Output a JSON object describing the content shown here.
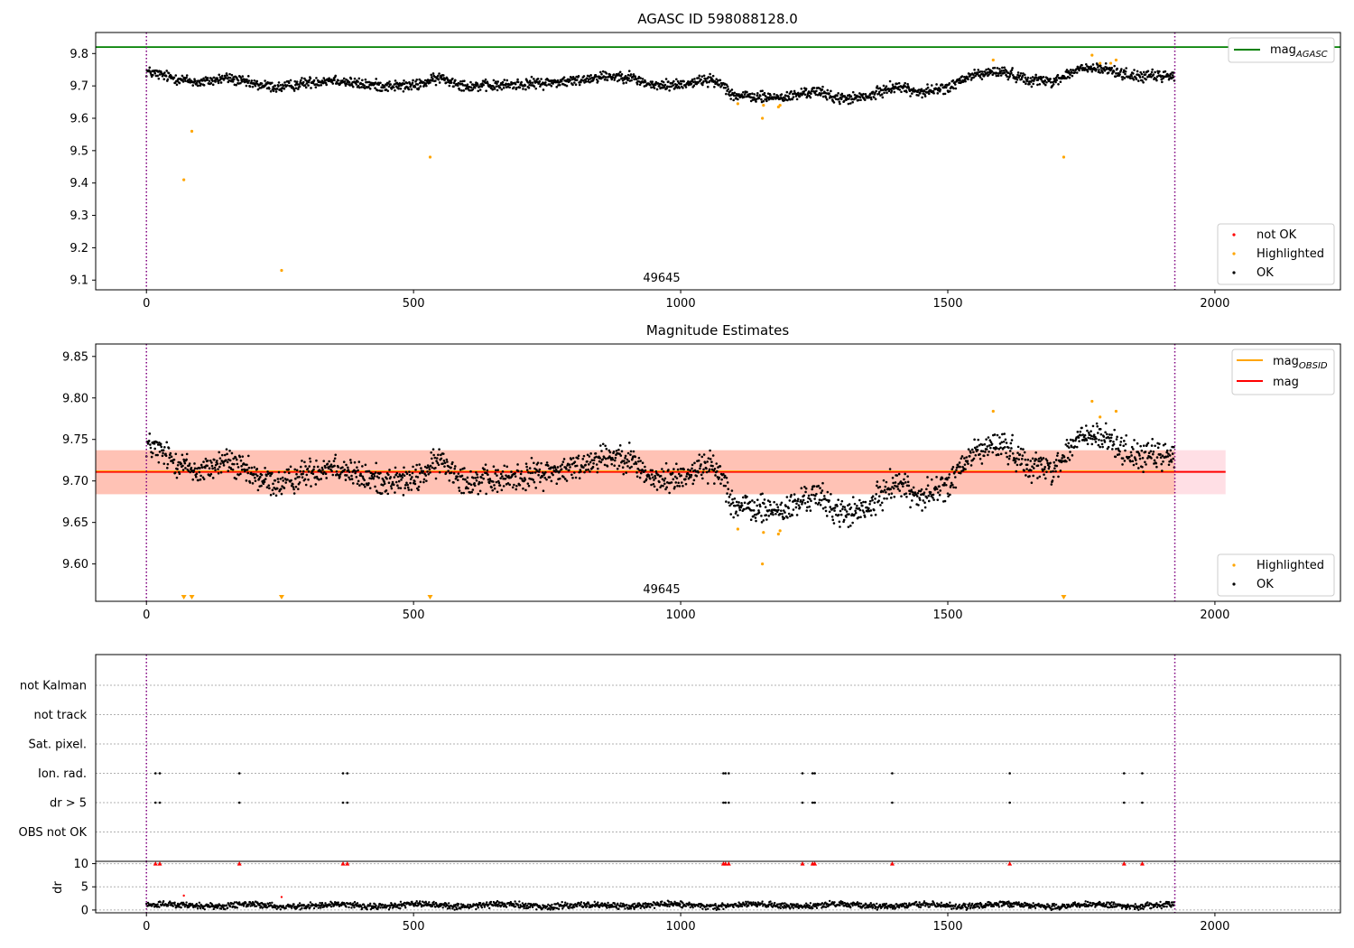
{
  "chart_data": [
    {
      "type": "scatter",
      "title": "AGASC ID 598088128.0",
      "xlabel": "",
      "ylabel": "",
      "xlim": [
        -95,
        2235
      ],
      "ylim": [
        9.07,
        9.865
      ],
      "x_ticks": [
        0,
        500,
        1000,
        1500,
        2000
      ],
      "y_ticks": [
        9.1,
        9.2,
        9.3,
        9.4,
        9.5,
        9.6,
        9.7,
        9.8
      ],
      "y_tick_labels": [
        "9.1",
        "9.2",
        "9.3",
        "9.4",
        "9.5",
        "9.6",
        "9.7",
        "9.8"
      ],
      "x_tick_labels": [
        "0",
        "500",
        "1000",
        "1500",
        "2000"
      ],
      "annotation": "49645",
      "annotation_x": 960,
      "vlines": [
        0,
        1925
      ],
      "hlines": [
        {
          "name": "mag_AGASC",
          "value": 9.82,
          "color": "#008000"
        }
      ],
      "legend_top": {
        "name": "mag",
        "sub": "AGASC",
        "color": "#008000"
      },
      "legend_bottom": [
        {
          "name": "not OK",
          "color": "#ff0000"
        },
        {
          "name": "Highlighted",
          "color": "#ffa500"
        },
        {
          "name": "OK",
          "color": "#000000"
        }
      ],
      "ok_trend": {
        "x": [
          0,
          50,
          100,
          150,
          200,
          250,
          300,
          350,
          400,
          450,
          500,
          550,
          600,
          650,
          700,
          750,
          800,
          850,
          900,
          950,
          1000,
          1050,
          1080,
          1100,
          1150,
          1200,
          1250,
          1300,
          1350,
          1400,
          1450,
          1500,
          1550,
          1600,
          1650,
          1700,
          1750,
          1800,
          1850,
          1900,
          1925
        ],
        "y": [
          9.745,
          9.725,
          9.71,
          9.725,
          9.705,
          9.695,
          9.71,
          9.72,
          9.705,
          9.7,
          9.7,
          9.725,
          9.7,
          9.7,
          9.705,
          9.71,
          9.715,
          9.73,
          9.73,
          9.7,
          9.705,
          9.72,
          9.705,
          9.67,
          9.665,
          9.665,
          9.685,
          9.66,
          9.665,
          9.7,
          9.68,
          9.695,
          9.735,
          9.745,
          9.72,
          9.715,
          9.755,
          9.75,
          9.73,
          9.73,
          9.73
        ]
      },
      "ok_noise": 0.012,
      "n_ok": 1925,
      "highlighted": {
        "x": [
          70,
          85,
          253,
          531,
          1107,
          1153,
          1155,
          1183,
          1186,
          1585,
          1717,
          1770,
          1785,
          1805,
          1815
        ],
        "y": [
          9.41,
          9.56,
          9.13,
          9.48,
          9.645,
          9.6,
          9.64,
          9.635,
          9.64,
          9.78,
          9.48,
          9.795,
          9.77,
          9.77,
          9.78
        ]
      }
    },
    {
      "type": "scatter",
      "title": "Magnitude Estimates",
      "xlabel": "",
      "ylabel": "",
      "xlim": [
        -95,
        2235
      ],
      "ylim": [
        9.555,
        9.865
      ],
      "x_ticks": [
        0,
        500,
        1000,
        1500,
        2000
      ],
      "y_ticks": [
        9.6,
        9.65,
        9.7,
        9.75,
        9.8,
        9.85
      ],
      "y_tick_labels": [
        "9.60",
        "9.65",
        "9.70",
        "9.75",
        "9.80",
        "9.85"
      ],
      "x_tick_labels": [
        "0",
        "500",
        "1000",
        "1500",
        "2000"
      ],
      "annotation": "49645",
      "annotation_x": 960,
      "vlines": [
        0,
        1925
      ],
      "mag": 9.711,
      "band_outer": {
        "x": [
          -95,
          2020
        ],
        "y": [
          9.684,
          9.737
        ],
        "color": "#ffc0cb"
      },
      "band_inner": {
        "x": [
          -95,
          1925
        ],
        "y": [
          9.684,
          9.737
        ],
        "color": "#ffa07a"
      },
      "legend_top": [
        {
          "name": "mag",
          "sub": "OBSID",
          "color": "#ffa500"
        },
        {
          "name": "mag",
          "sub": "",
          "color": "#ff0000"
        }
      ],
      "legend_bottom": [
        {
          "name": "Highlighted",
          "color": "#ffa500"
        },
        {
          "name": "OK",
          "color": "#000000"
        }
      ],
      "highlighted": {
        "x": [
          1107,
          1153,
          1155,
          1183,
          1186,
          1585,
          1770,
          1785,
          1815
        ],
        "y": [
          9.642,
          9.6,
          9.638,
          9.636,
          9.64,
          9.784,
          9.796,
          9.777,
          9.784
        ]
      },
      "offscale_markers_x": [
        70,
        85,
        253,
        531,
        1717
      ]
    },
    {
      "type": "scatter",
      "title": "",
      "xlabel": "",
      "ylabel": "",
      "xlim": [
        -95,
        2235
      ],
      "x_ticks": [
        0,
        500,
        1000,
        1500,
        2000
      ],
      "x_tick_labels": [
        "0",
        "500",
        "1000",
        "1500",
        "2000"
      ],
      "vlines": [
        0,
        1925
      ],
      "flag_rows": [
        "not Kalman",
        "not track",
        "Sat. pixel.",
        "Ion. rad.",
        "dr > 5",
        "OBS not OK"
      ],
      "flag_points": {
        "Ion. rad.": [
          17,
          25,
          174,
          368,
          376,
          1080,
          1084,
          1090,
          1228,
          1247,
          1251,
          1396,
          1616,
          1830,
          1864
        ],
        "dr > 5": [
          17,
          25,
          174,
          368,
          376,
          1080,
          1084,
          1090,
          1228,
          1247,
          1251,
          1396,
          1616,
          1830,
          1864
        ]
      }
    },
    {
      "type": "scatter",
      "title": "",
      "xlabel": "",
      "ylabel": "dr",
      "xlim": [
        -95,
        2235
      ],
      "ylim": [
        -0.6,
        10.5
      ],
      "y_ticks": [
        0,
        5,
        10
      ],
      "y_tick_labels": [
        "0",
        "5",
        "10"
      ],
      "x_ticks": [
        0,
        500,
        1000,
        1500,
        2000
      ],
      "x_tick_labels": [
        "0",
        "500",
        "1000",
        "1500",
        "2000"
      ],
      "vlines": [
        0,
        1925
      ],
      "dr_level": 1.0,
      "dr_noise": 0.5,
      "clipped_x": [
        17,
        25,
        174,
        368,
        376,
        1080,
        1084,
        1090,
        1228,
        1247,
        1251,
        1396,
        1616,
        1830,
        1864
      ],
      "clipped_value": 10,
      "highlighted": {
        "x": [
          70,
          253
        ],
        "y": [
          3.1,
          2.8
        ]
      }
    }
  ]
}
